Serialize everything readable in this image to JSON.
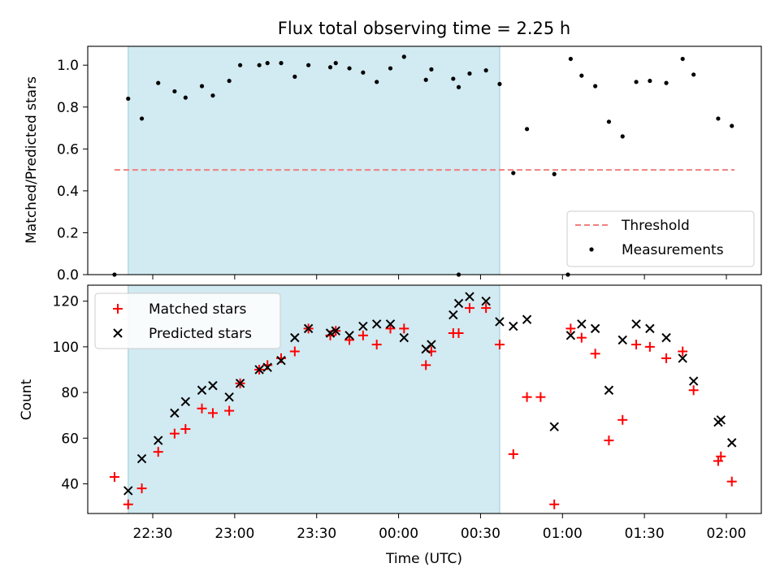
{
  "chart_data": [
    {
      "type": "scatter",
      "title": "Flux total observing time = 2.25 h",
      "xlabel": "",
      "ylabel": "Matched/Predicted stars",
      "ylim": [
        0,
        1.09
      ],
      "y_ticks": [
        0.0,
        0.2,
        0.4,
        0.6,
        0.8,
        1.0
      ],
      "y_tick_labels": [
        "0.0",
        "0.2",
        "0.4",
        "0.6",
        "0.8",
        "1.0"
      ],
      "x_ticks": [
        "22:30",
        "23:00",
        "23:30",
        "00:00",
        "00:30",
        "01:00",
        "01:30",
        "02:00"
      ],
      "shaded_region": {
        "start": "22:21",
        "end": "00:37",
        "color": "#add8e6"
      },
      "legend": {
        "position": "lower right",
        "entries": [
          "Threshold",
          "Measurements"
        ]
      },
      "series": [
        {
          "name": "Threshold",
          "style": "dashed-line",
          "color": "#f08080",
          "x": [
            "22:16",
            "02:03"
          ],
          "values": [
            0.5,
            0.5
          ]
        },
        {
          "name": "Measurements",
          "style": "dots",
          "color": "#000000",
          "x": [
            "22:16",
            "22:21",
            "22:26",
            "22:32",
            "22:38",
            "22:42",
            "22:48",
            "22:52",
            "22:58",
            "23:02",
            "23:09",
            "23:12",
            "23:17",
            "23:22",
            "23:27",
            "23:35",
            "23:37",
            "23:42",
            "23:47",
            "23:52",
            "23:57",
            "24:02",
            "24:10",
            "24:12",
            "24:20",
            "24:22",
            "24:26",
            "24:32",
            "24:37",
            "24:42",
            "24:47",
            "24:57",
            "25:03",
            "25:07",
            "25:12",
            "25:17",
            "25:22",
            "25:27",
            "25:32",
            "25:38",
            "25:44",
            "25:48",
            "25:57",
            "26:02"
          ],
          "values": [
            0.0,
            0.84,
            0.745,
            0.915,
            0.875,
            0.845,
            0.9,
            0.855,
            0.925,
            1.0,
            1.0,
            1.01,
            1.01,
            0.945,
            1.0,
            0.99,
            1.01,
            0.985,
            0.965,
            0.92,
            0.985,
            1.04,
            0.93,
            0.98,
            0.935,
            0.895,
            0.96,
            0.975,
            0.91,
            0.485,
            0.695,
            0.48,
            1.03,
            0.95,
            0.9,
            0.73,
            0.66,
            0.92,
            0.925,
            0.915,
            1.03,
            0.955,
            0.745,
            0.71
          ]
        }
      ],
      "extra_points": {
        "x": [
          "24:22",
          "25:02"
        ],
        "values": [
          0.0,
          0.0
        ]
      }
    },
    {
      "type": "scatter",
      "title": "",
      "xlabel": "Time (UTC)",
      "ylabel": "Count",
      "ylim": [
        27,
        127
      ],
      "y_ticks": [
        40,
        60,
        80,
        100,
        120
      ],
      "x_ticks": [
        "22:30",
        "23:00",
        "23:30",
        "00:00",
        "00:30",
        "01:00",
        "01:30",
        "02:00"
      ],
      "shaded_region": {
        "start": "22:21",
        "end": "00:37",
        "color": "#add8e6"
      },
      "legend": {
        "position": "upper left",
        "entries": [
          "Matched stars",
          "Predicted stars"
        ]
      },
      "series": [
        {
          "name": "Matched stars",
          "marker": "plus",
          "color": "#ff0000",
          "x": [
            "22:16",
            "22:21",
            "22:26",
            "22:32",
            "22:38",
            "22:42",
            "22:48",
            "22:52",
            "22:58",
            "23:02",
            "23:09",
            "23:12",
            "23:17",
            "23:22",
            "23:27",
            "23:35",
            "23:37",
            "23:42",
            "23:47",
            "23:52",
            "23:57",
            "24:02",
            "24:10",
            "24:12",
            "24:20",
            "24:22",
            "24:26",
            "24:32",
            "24:37",
            "24:42",
            "24:47",
            "24:52",
            "24:57",
            "25:03",
            "25:07",
            "25:12",
            "25:17",
            "25:22",
            "25:27",
            "25:32",
            "25:38",
            "25:44",
            "25:48",
            "25:57",
            "25:58",
            "26:02"
          ],
          "values": [
            43,
            31,
            38,
            54,
            62,
            64,
            73,
            71,
            72,
            84,
            90,
            92,
            95,
            98,
            108,
            105,
            107,
            103,
            105,
            101,
            108,
            108,
            92,
            98,
            106,
            106,
            117,
            117,
            101,
            53,
            78,
            78,
            31,
            108,
            104,
            97,
            59,
            68,
            101,
            100,
            95,
            98,
            81,
            50,
            52,
            41
          ]
        },
        {
          "name": "Predicted stars",
          "marker": "x",
          "color": "#000000",
          "x": [
            "22:21",
            "22:26",
            "22:32",
            "22:38",
            "22:42",
            "22:48",
            "22:52",
            "22:58",
            "23:02",
            "23:09",
            "23:12",
            "23:17",
            "23:22",
            "23:27",
            "23:35",
            "23:37",
            "23:42",
            "23:47",
            "23:52",
            "23:57",
            "24:02",
            "24:10",
            "24:12",
            "24:20",
            "24:22",
            "24:26",
            "24:32",
            "24:37",
            "24:42",
            "24:47",
            "24:57",
            "25:03",
            "25:07",
            "25:12",
            "25:17",
            "25:22",
            "25:27",
            "25:32",
            "25:38",
            "25:44",
            "25:48",
            "25:57",
            "25:58",
            "26:02"
          ],
          "values": [
            37,
            51,
            59,
            71,
            76,
            81,
            83,
            78,
            84,
            90,
            91,
            94,
            104,
            108,
            106,
            107,
            105,
            109,
            110,
            110,
            104,
            99,
            101,
            114,
            119,
            122,
            120,
            111,
            109,
            112,
            65,
            105,
            110,
            108,
            81,
            103,
            110,
            108,
            104,
            95,
            85,
            67,
            68,
            58
          ]
        }
      ]
    }
  ]
}
